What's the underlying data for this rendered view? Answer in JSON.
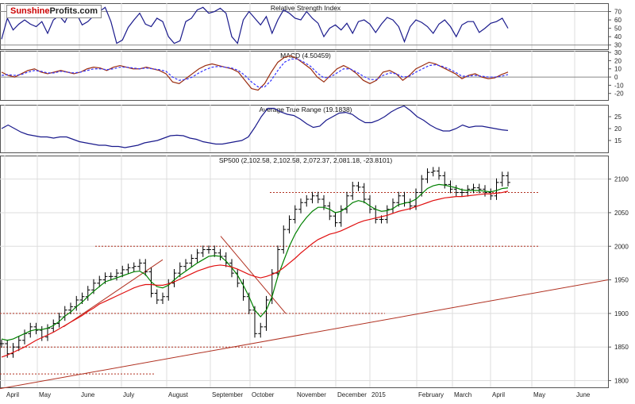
{
  "brand": {
    "part1": "Sunshine",
    "part2": "Profits.com"
  },
  "colors": {
    "price": "#000000",
    "ma_short": "#008000",
    "ma_long": "#e01010",
    "indicator": "#1a1a8c",
    "signal": "#3333ff",
    "macd": "#9b2d10",
    "level": "#b03020",
    "trend": "#b03020",
    "grid": "#dddddd"
  },
  "chart_data": [
    {
      "type": "line",
      "title": "Relative Strength Index",
      "ylim": [
        25,
        80
      ],
      "y_ticks": [
        30,
        40,
        50,
        60,
        70
      ],
      "grid": false,
      "reference_lines": [
        30,
        70
      ],
      "series": [
        {
          "values": [
            37,
            62,
            48,
            55,
            60,
            55,
            52,
            58,
            44,
            60,
            65,
            57,
            72,
            68,
            54,
            58,
            65,
            70,
            75,
            58,
            32,
            36,
            51,
            60,
            68,
            55,
            52,
            62,
            58,
            40,
            32,
            35,
            58,
            62,
            72,
            75,
            68,
            70,
            74,
            68,
            40,
            32,
            60,
            70,
            62,
            54,
            64,
            44,
            60,
            72,
            68,
            62,
            60,
            70,
            62,
            56,
            40,
            50,
            54,
            48,
            56,
            44,
            58,
            60,
            55,
            45,
            55,
            63,
            60,
            52,
            34,
            52,
            60,
            57,
            52,
            44,
            55,
            60,
            52,
            40,
            54,
            58,
            58,
            45,
            50,
            56,
            58,
            62,
            50
          ]
        }
      ]
    },
    {
      "type": "line",
      "title": "MACD (4.50459)",
      "ylim": [
        -28,
        32
      ],
      "y_ticks": [
        -20,
        -10,
        0,
        10,
        20,
        30
      ],
      "grid": false,
      "reference_lines": [
        0
      ],
      "series": [
        {
          "values": [
            6,
            2,
            0,
            4,
            8,
            10,
            6,
            4,
            6,
            8,
            6,
            4,
            6,
            10,
            12,
            11,
            8,
            12,
            14,
            12,
            10,
            10,
            12,
            10,
            8,
            4,
            -6,
            -8,
            -2,
            4,
            10,
            14,
            16,
            14,
            12,
            10,
            6,
            -4,
            -14,
            -16,
            -8,
            6,
            18,
            24,
            26,
            22,
            16,
            10,
            0,
            -6,
            2,
            10,
            14,
            10,
            4,
            -4,
            -8,
            -4,
            6,
            8,
            4,
            -4,
            2,
            10,
            14,
            18,
            16,
            12,
            8,
            4,
            -2,
            2,
            4,
            0,
            -2,
            -1,
            3,
            6
          ]
        },
        {
          "values": [
            2,
            3,
            2,
            3,
            6,
            8,
            7,
            5,
            5,
            7,
            6,
            5,
            6,
            8,
            10,
            10,
            9,
            10,
            12,
            12,
            11,
            10,
            11,
            10,
            9,
            7,
            0,
            -4,
            -3,
            0,
            5,
            9,
            12,
            13,
            12,
            11,
            8,
            2,
            -6,
            -12,
            -12,
            -4,
            8,
            18,
            22,
            22,
            18,
            13,
            5,
            -1,
            0,
            5,
            10,
            10,
            6,
            1,
            -3,
            -3,
            2,
            5,
            4,
            0,
            1,
            6,
            10,
            14,
            15,
            13,
            10,
            6,
            1,
            1,
            2,
            1,
            0,
            0,
            1,
            3
          ]
        }
      ]
    },
    {
      "type": "line",
      "title": "Average True Range (19.1838)",
      "ylim": [
        10,
        30
      ],
      "y_ticks": [
        15,
        20,
        25
      ],
      "grid": false,
      "series": [
        {
          "values": [
            20,
            21.5,
            20,
            18.5,
            17.5,
            17,
            16.5,
            16.5,
            16,
            16.5,
            16.5,
            15.5,
            14.5,
            14,
            13.5,
            13,
            13,
            12.5,
            12.5,
            12,
            12.5,
            13,
            14,
            14.5,
            15,
            16,
            17,
            17.2,
            17,
            16,
            15.5,
            14.5,
            14,
            13.5,
            13.5,
            14,
            14.5,
            15,
            16.5,
            20.5,
            25,
            28.5,
            28.5,
            27,
            26,
            25.5,
            24,
            22,
            20.5,
            21,
            23.5,
            25,
            26.5,
            26.8,
            26,
            24,
            22.5,
            22.5,
            23.5,
            25,
            27,
            28.5,
            29.5,
            27.5,
            25,
            23.5,
            21.5,
            20,
            19,
            19,
            20,
            21.5,
            20.5,
            21,
            21,
            20.5,
            20,
            19.5,
            19.2
          ]
        }
      ]
    },
    {
      "type": "line",
      "title": "SP500 (2,102.58, 2,102.58, 2,072.37, 2,081.18, -23.8101)",
      "x_ticks": [
        "April",
        "May",
        "June",
        "July",
        "August",
        "September",
        "October",
        "November",
        "December",
        "2015",
        "February",
        "March",
        "April",
        "May",
        "June"
      ],
      "ylim": [
        1790,
        2135
      ],
      "y_ticks": [
        1800,
        1850,
        1900,
        1950,
        2000,
        2050,
        2100
      ],
      "grid": true,
      "horizontal_levels": [
        1810,
        1850,
        1900,
        2000,
        2080
      ],
      "series": [
        {
          "name": "SP500",
          "values": [
            1855,
            1840,
            1850,
            1860,
            1870,
            1880,
            1875,
            1865,
            1878,
            1885,
            1895,
            1905,
            1910,
            1920,
            1925,
            1935,
            1945,
            1950,
            1955,
            1955,
            1960,
            1965,
            1968,
            1970,
            1975,
            1962,
            1930,
            1920,
            1925,
            1945,
            1960,
            1970,
            1975,
            1982,
            1990,
            1995,
            1995,
            1990,
            1985,
            1975,
            1960,
            1945,
            1925,
            1905,
            1870,
            1880,
            1920,
            1960,
            1995,
            2025,
            2040,
            2055,
            2065,
            2070,
            2075,
            2070,
            2060,
            2045,
            2035,
            2055,
            2075,
            2090,
            2088,
            2070,
            2055,
            2040,
            2040,
            2055,
            2065,
            2075,
            2065,
            2060,
            2080,
            2100,
            2110,
            2112,
            2105,
            2092,
            2085,
            2080,
            2080,
            2085,
            2087,
            2085,
            2080,
            2075,
            2095,
            2105,
            2095
          ]
        },
        {
          "name": "MA short",
          "values": [
            1862,
            1860,
            1862,
            1866,
            1870,
            1874,
            1876,
            1876,
            1878,
            1882,
            1888,
            1896,
            1902,
            1910,
            1917,
            1925,
            1933,
            1940,
            1947,
            1950,
            1953,
            1956,
            1959,
            1962,
            1963,
            1958,
            1947,
            1940,
            1938,
            1942,
            1950,
            1957,
            1963,
            1969,
            1975,
            1980,
            1985,
            1986,
            1985,
            1978,
            1968,
            1957,
            1942,
            1925,
            1905,
            1895,
            1905,
            1925,
            1955,
            1978,
            2000,
            2018,
            2032,
            2043,
            2052,
            2058,
            2058,
            2055,
            2050,
            2052,
            2058,
            2065,
            2068,
            2066,
            2060,
            2055,
            2052,
            2053,
            2056,
            2062,
            2064,
            2066,
            2070,
            2078,
            2086,
            2090,
            2092,
            2091,
            2089,
            2087,
            2084,
            2083,
            2083,
            2083,
            2082,
            2081,
            2083,
            2086,
            2087
          ]
        },
        {
          "name": "MA long",
          "values": [
            1835,
            1838,
            1842,
            1846,
            1850,
            1855,
            1860,
            1864,
            1868,
            1872,
            1877,
            1882,
            1887,
            1892,
            1897,
            1903,
            1908,
            1914,
            1918,
            1922,
            1926,
            1930,
            1934,
            1938,
            1941,
            1943,
            1943,
            1942,
            1942,
            1944,
            1947,
            1951,
            1955,
            1959,
            1963,
            1966,
            1969,
            1971,
            1972,
            1971,
            1969,
            1966,
            1962,
            1958,
            1955,
            1953,
            1955,
            1958,
            1962,
            1968,
            1975,
            1982,
            1990,
            1997,
            2004,
            2010,
            2014,
            2018,
            2020,
            2023,
            2027,
            2031,
            2035,
            2038,
            2040,
            2042,
            2044,
            2046,
            2049,
            2052,
            2054,
            2056,
            2059,
            2062,
            2065,
            2068,
            2070,
            2072,
            2073,
            2074,
            2074,
            2075,
            2076,
            2077,
            2078,
            2078,
            2079,
            2080,
            2082
          ]
        }
      ]
    }
  ]
}
